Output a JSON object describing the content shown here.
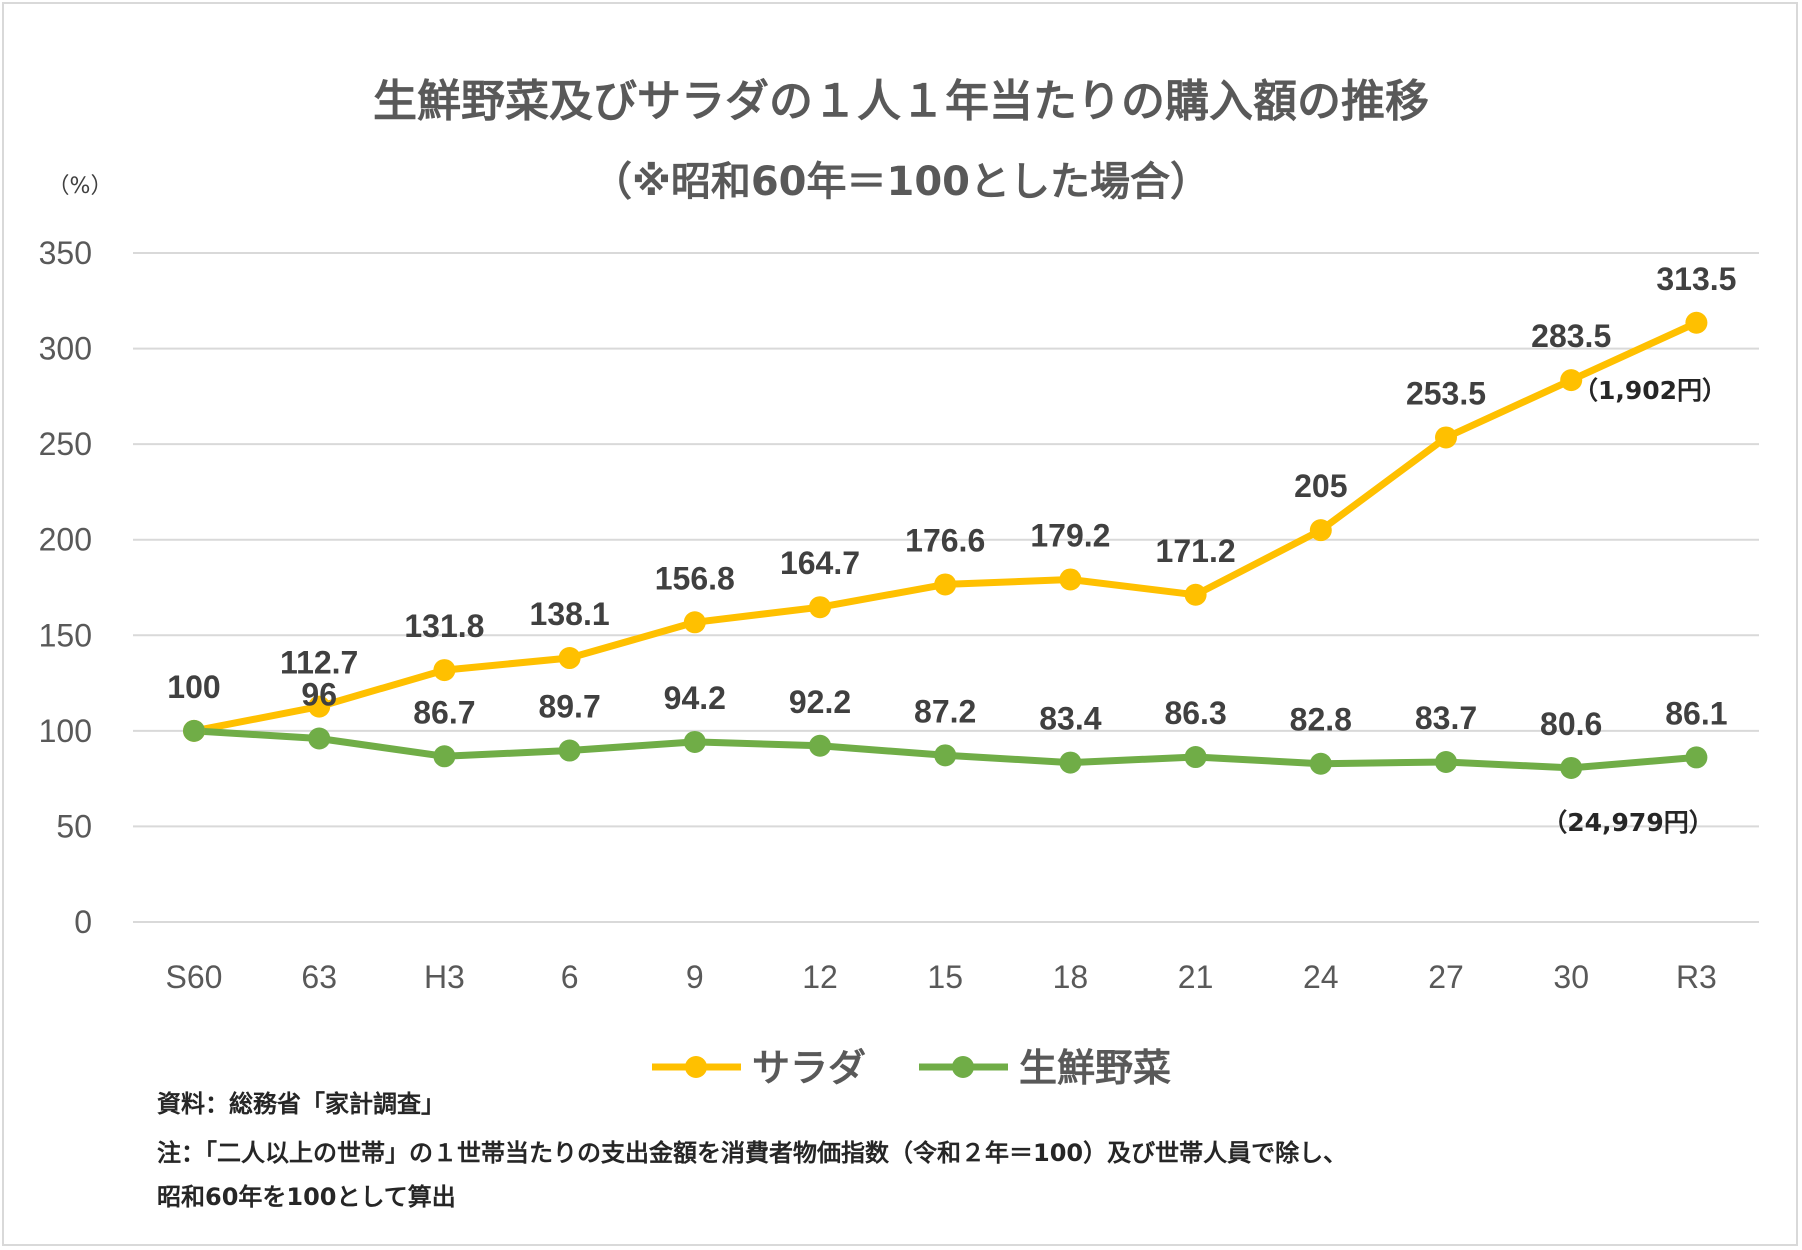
{
  "chart_data": {
    "type": "line",
    "title": "生鮮野菜及びサラダの１人１年当たりの購入額の推移",
    "subtitle": "（※昭和60年＝100とした場合）",
    "ylabel": "（%）",
    "ylim": [
      0,
      350
    ],
    "yticks": [
      0,
      50,
      100,
      150,
      200,
      250,
      300,
      350
    ],
    "grid": true,
    "legend_position": "bottom",
    "categories": [
      "S60",
      "63",
      "H3",
      "6",
      "9",
      "12",
      "15",
      "18",
      "21",
      "24",
      "27",
      "30",
      "R3"
    ],
    "series": [
      {
        "name": "サラダ",
        "color": "#FFC000",
        "values": [
          100,
          112.7,
          131.8,
          138.1,
          156.8,
          164.7,
          176.6,
          179.2,
          171.2,
          205,
          253.5,
          283.5,
          313.5
        ],
        "labels": [
          "100",
          "112.7",
          "131.8",
          "138.1",
          "156.8",
          "164.7",
          "176.6",
          "179.2",
          "171.2",
          "205",
          "253.5",
          "283.5",
          "313.5"
        ],
        "annotation": "（1,902円）"
      },
      {
        "name": "生鮮野菜",
        "color": "#70AD47",
        "values": [
          100,
          96,
          86.7,
          89.7,
          94.2,
          92.2,
          87.2,
          83.4,
          86.3,
          82.8,
          83.7,
          80.6,
          86.1
        ],
        "labels": [
          "",
          "96",
          "86.7",
          "89.7",
          "94.2",
          "92.2",
          "87.2",
          "83.4",
          "86.3",
          "82.8",
          "83.7",
          "80.6",
          "86.1"
        ],
        "annotation": "（24,979円）"
      }
    ]
  },
  "notes": {
    "source": "資料：総務省「家計調査」",
    "note1": "注：「二人以上の世帯」の１世帯当たりの支出金額を消費者物価指数（令和２年＝100）及び世帯人員で除し、",
    "note2": "昭和60年を100として算出"
  }
}
